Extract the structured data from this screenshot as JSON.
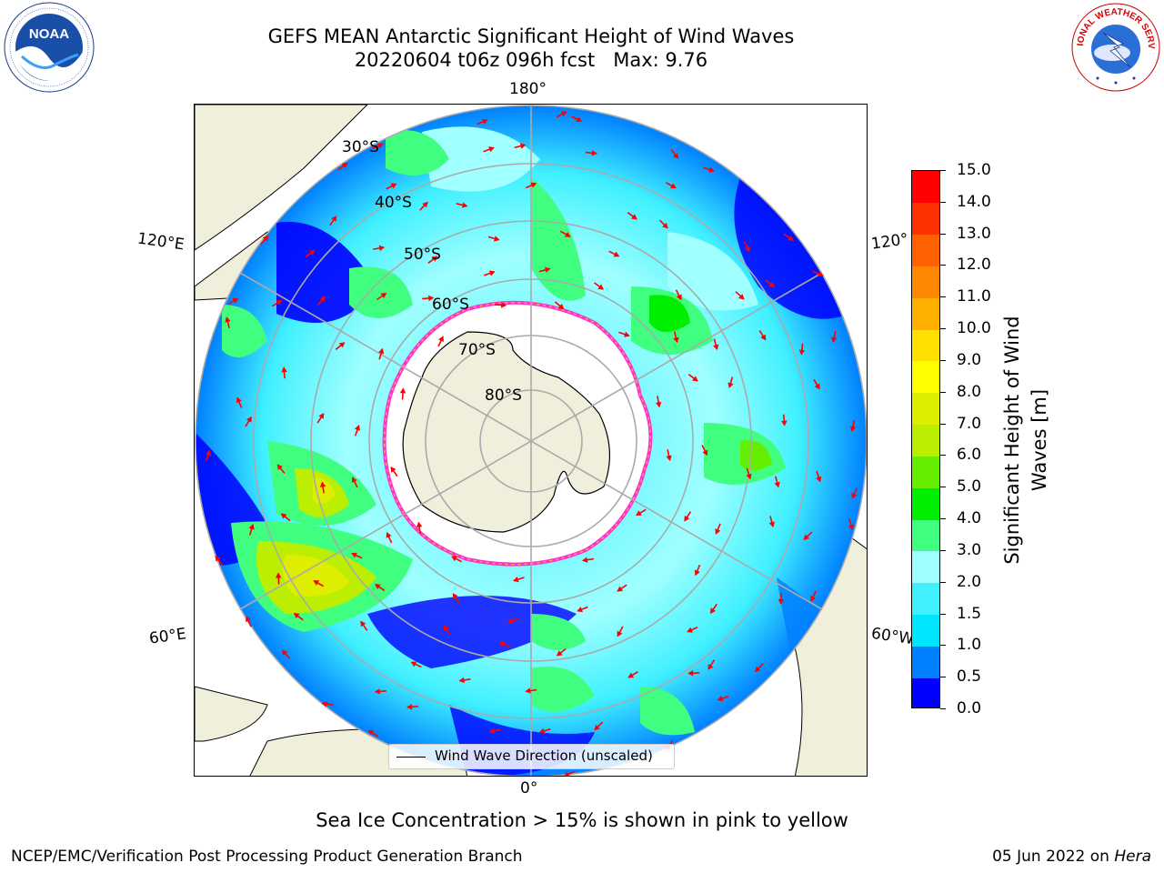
{
  "header": {
    "title_line1": "GEFS MEAN Antarctic Significant Height of Wind Waves",
    "title_line2": "20220604 t06z 096h fcst   Max: 9.76"
  },
  "logos": {
    "noaa": {
      "icon": "noaa-logo-icon",
      "text": "NOAA"
    },
    "nws": {
      "icon": "nws-logo-icon",
      "text": "NATIONAL WEATHER SERVICE"
    }
  },
  "map": {
    "longitude_labels": [
      "180°",
      "120°E",
      "120°",
      "60°E",
      "60°W",
      "0°"
    ],
    "latitude_labels": [
      "30°S",
      "40°S",
      "50°S",
      "60°S",
      "70°S",
      "80°S"
    ],
    "legend_label": "Wind Wave Direction (unscaled)",
    "arrow_color": "#ff0000",
    "land_color": "#efefdb",
    "ice_edge_color": "#ff33cc"
  },
  "colorbar": {
    "title": "Significant Height of Wind\nWaves [m]",
    "tick_labels": [
      "0.0",
      "0.5",
      "1.0",
      "1.5",
      "2.0",
      "3.0",
      "4.0",
      "5.0",
      "6.0",
      "7.0",
      "8.0",
      "9.0",
      "10.0",
      "11.0",
      "12.0",
      "13.0",
      "14.0",
      "15.0"
    ],
    "colors": [
      "#0000ff",
      "#0080ff",
      "#00e6ff",
      "#40f0ff",
      "#a0ffff",
      "#40ff80",
      "#00ee00",
      "#66ee00",
      "#bbee00",
      "#ddee00",
      "#ffff00",
      "#ffe000",
      "#ffb000",
      "#ff8800",
      "#ff6000",
      "#ff3000",
      "#ff0000"
    ]
  },
  "subtitle": "Sea Ice Concentration > 15% is shown in pink to yellow",
  "footer": {
    "left": "NCEP/EMC/Verification Post Processing Product Generation Branch",
    "date": "05 Jun 2022 on ",
    "host": "Hera"
  }
}
